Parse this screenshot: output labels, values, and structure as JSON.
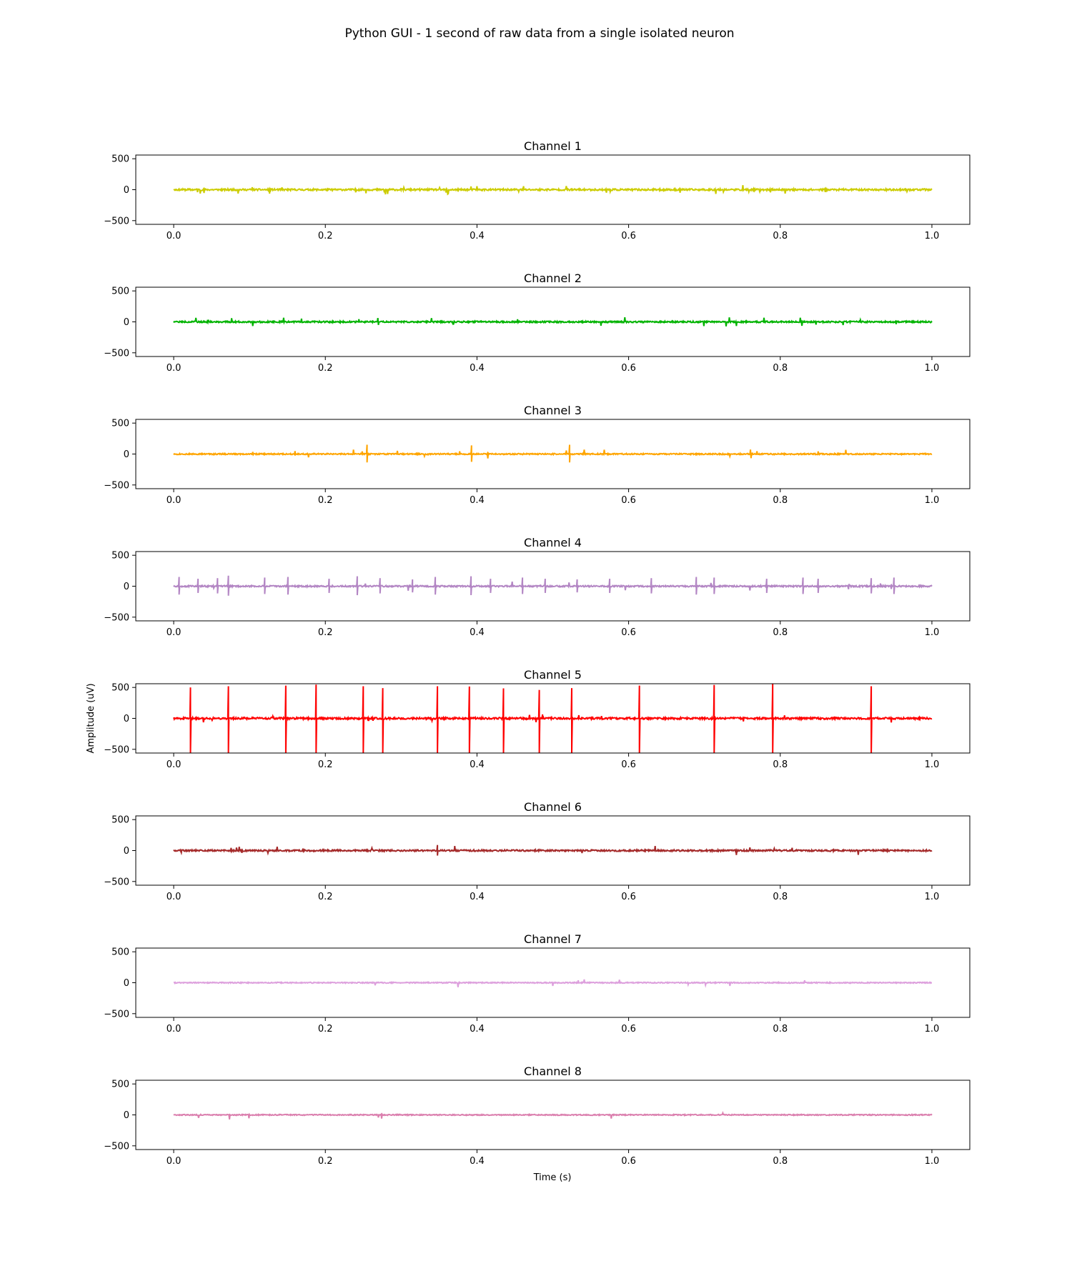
{
  "figure": {
    "suptitle": "Python GUI - 1 second of raw data from a single isolated neuron",
    "xlabel": "Time (s)",
    "ylabel": "Amplitude (uV)",
    "ylabel_panel": 4
  },
  "chart_data": [
    {
      "type": "line",
      "title": "Channel 1",
      "series": [
        {
          "color": "#cccc00",
          "noise": 14,
          "seed": 11,
          "spikes": [],
          "small_spikes": 34
        }
      ],
      "xlim": [
        -0.05,
        1.05
      ],
      "ylim": [
        -560,
        560
      ],
      "xticks": [
        0.0,
        0.2,
        0.4,
        0.6,
        0.8,
        1.0
      ],
      "xtick_labels": [
        "0.0",
        "0.2",
        "0.4",
        "0.6",
        "0.8",
        "1.0"
      ],
      "yticks": [
        500,
        0,
        -500
      ],
      "ytick_labels": [
        "500",
        "0",
        "−500"
      ],
      "x_end": 1.0
    },
    {
      "type": "line",
      "title": "Channel 2",
      "series": [
        {
          "color": "#00b300",
          "noise": 12,
          "seed": 22,
          "spikes": [],
          "small_spikes": 26
        }
      ],
      "xlim": [
        -0.05,
        1.05
      ],
      "ylim": [
        -560,
        560
      ],
      "xticks": [
        0.0,
        0.2,
        0.4,
        0.6,
        0.8,
        1.0
      ],
      "xtick_labels": [
        "0.0",
        "0.2",
        "0.4",
        "0.6",
        "0.8",
        "1.0"
      ],
      "yticks": [
        500,
        0,
        -500
      ],
      "ytick_labels": [
        "500",
        "0",
        "−500"
      ],
      "x_end": 1.0
    },
    {
      "type": "line",
      "title": "Channel 3",
      "series": [
        {
          "color": "#ffa500",
          "noise": 10,
          "seed": 33,
          "spikes": [
            {
              "t": 0.255,
              "amp": 150
            },
            {
              "t": 0.393,
              "amp": 140
            },
            {
              "t": 0.522,
              "amp": 150
            }
          ],
          "small_spikes": 18
        }
      ],
      "xlim": [
        -0.05,
        1.05
      ],
      "ylim": [
        -560,
        560
      ],
      "xticks": [
        0.0,
        0.2,
        0.4,
        0.6,
        0.8,
        1.0
      ],
      "xtick_labels": [
        "0.0",
        "0.2",
        "0.4",
        "0.6",
        "0.8",
        "1.0"
      ],
      "yticks": [
        500,
        0,
        -500
      ],
      "ytick_labels": [
        "500",
        "0",
        "−500"
      ],
      "x_end": 1.0
    },
    {
      "type": "line",
      "title": "Channel 4",
      "series": [
        {
          "color": "#b386c4",
          "noise": 12,
          "seed": 44,
          "spikes": [
            {
              "t": 0.007,
              "amp": 150
            },
            {
              "t": 0.032,
              "amp": 120
            },
            {
              "t": 0.058,
              "amp": 130
            },
            {
              "t": 0.072,
              "amp": 170
            },
            {
              "t": 0.12,
              "amp": 140
            },
            {
              "t": 0.151,
              "amp": 150
            },
            {
              "t": 0.205,
              "amp": 120
            },
            {
              "t": 0.242,
              "amp": 160
            },
            {
              "t": 0.272,
              "amp": 130
            },
            {
              "t": 0.315,
              "amp": 110
            },
            {
              "t": 0.345,
              "amp": 150
            },
            {
              "t": 0.392,
              "amp": 160
            },
            {
              "t": 0.418,
              "amp": 120
            },
            {
              "t": 0.46,
              "amp": 140
            },
            {
              "t": 0.49,
              "amp": 120
            },
            {
              "t": 0.532,
              "amp": 110
            },
            {
              "t": 0.575,
              "amp": 120
            },
            {
              "t": 0.63,
              "amp": 130
            },
            {
              "t": 0.689,
              "amp": 150
            },
            {
              "t": 0.713,
              "amp": 140
            },
            {
              "t": 0.782,
              "amp": 120
            },
            {
              "t": 0.83,
              "amp": 140
            },
            {
              "t": 0.85,
              "amp": 120
            },
            {
              "t": 0.92,
              "amp": 130
            },
            {
              "t": 0.95,
              "amp": 140
            }
          ],
          "small_spikes": 12
        }
      ],
      "xlim": [
        -0.05,
        1.05
      ],
      "ylim": [
        -560,
        560
      ],
      "xticks": [
        0.0,
        0.2,
        0.4,
        0.6,
        0.8,
        1.0
      ],
      "xtick_labels": [
        "0.0",
        "0.2",
        "0.4",
        "0.6",
        "0.8",
        "1.0"
      ],
      "yticks": [
        500,
        0,
        -500
      ],
      "ytick_labels": [
        "500",
        "0",
        "−500"
      ],
      "x_end": 1.0
    },
    {
      "type": "line",
      "title": "Channel 5",
      "series": [
        {
          "color": "#ff0000",
          "noise": 15,
          "seed": 55,
          "spikes": [
            {
              "t": 0.022,
              "amp": 500,
              "down": 560
            },
            {
              "t": 0.072,
              "amp": 520,
              "down": 560
            },
            {
              "t": 0.148,
              "amp": 530,
              "down": 560
            },
            {
              "t": 0.188,
              "amp": 545,
              "down": 560
            },
            {
              "t": 0.25,
              "amp": 520,
              "down": 560
            },
            {
              "t": 0.276,
              "amp": 490,
              "down": 560
            },
            {
              "t": 0.348,
              "amp": 520,
              "down": 560
            },
            {
              "t": 0.39,
              "amp": 515,
              "down": 560
            },
            {
              "t": 0.435,
              "amp": 485,
              "down": 560
            },
            {
              "t": 0.482,
              "amp": 460,
              "down": 560
            },
            {
              "t": 0.525,
              "amp": 490,
              "down": 560
            },
            {
              "t": 0.614,
              "amp": 530,
              "down": 560
            },
            {
              "t": 0.713,
              "amp": 540,
              "down": 560
            },
            {
              "t": 0.79,
              "amp": 560,
              "down": 560
            },
            {
              "t": 0.92,
              "amp": 520,
              "down": 560
            }
          ],
          "small_spikes": 14
        }
      ],
      "xlim": [
        -0.05,
        1.05
      ],
      "ylim": [
        -560,
        560
      ],
      "xticks": [
        0.0,
        0.2,
        0.4,
        0.6,
        0.8,
        1.0
      ],
      "xtick_labels": [
        "0.0",
        "0.2",
        "0.4",
        "0.6",
        "0.8",
        "1.0"
      ],
      "yticks": [
        500,
        0,
        -500
      ],
      "ytick_labels": [
        "500",
        "0",
        "−500"
      ],
      "x_end": 1.0
    },
    {
      "type": "line",
      "title": "Channel 6",
      "series": [
        {
          "color": "#a52a2a",
          "noise": 13,
          "seed": 66,
          "spikes": [
            {
              "t": 0.348,
              "amp": 90
            }
          ],
          "small_spikes": 16
        }
      ],
      "xlim": [
        -0.05,
        1.05
      ],
      "ylim": [
        -560,
        560
      ],
      "xticks": [
        0.0,
        0.2,
        0.4,
        0.6,
        0.8,
        1.0
      ],
      "xtick_labels": [
        "0.0",
        "0.2",
        "0.4",
        "0.6",
        "0.8",
        "1.0"
      ],
      "yticks": [
        500,
        0,
        -500
      ],
      "ytick_labels": [
        "500",
        "0",
        "−500"
      ],
      "x_end": 1.0
    },
    {
      "type": "line",
      "title": "Channel 7",
      "series": [
        {
          "color": "#dda0dd",
          "noise": 8,
          "seed": 77,
          "spikes": [],
          "small_spikes": 10
        }
      ],
      "xlim": [
        -0.05,
        1.05
      ],
      "ylim": [
        -560,
        560
      ],
      "xticks": [
        0.0,
        0.2,
        0.4,
        0.6,
        0.8,
        1.0
      ],
      "xtick_labels": [
        "0.0",
        "0.2",
        "0.4",
        "0.6",
        "0.8",
        "1.0"
      ],
      "yticks": [
        500,
        0,
        -500
      ],
      "ytick_labels": [
        "500",
        "0",
        "−500"
      ],
      "x_end": 1.0
    },
    {
      "type": "line",
      "title": "Channel 8",
      "series": [
        {
          "color": "#db7fae",
          "noise": 8,
          "seed": 88,
          "spikes": [],
          "small_spikes": 8
        }
      ],
      "xlim": [
        -0.05,
        1.05
      ],
      "ylim": [
        -560,
        560
      ],
      "xticks": [
        0.0,
        0.2,
        0.4,
        0.6,
        0.8,
        1.0
      ],
      "xtick_labels": [
        "0.0",
        "0.2",
        "0.4",
        "0.6",
        "0.8",
        "1.0"
      ],
      "yticks": [
        500,
        0,
        -500
      ],
      "ytick_labels": [
        "500",
        "0",
        "−500"
      ],
      "x_end": 1.0
    }
  ]
}
